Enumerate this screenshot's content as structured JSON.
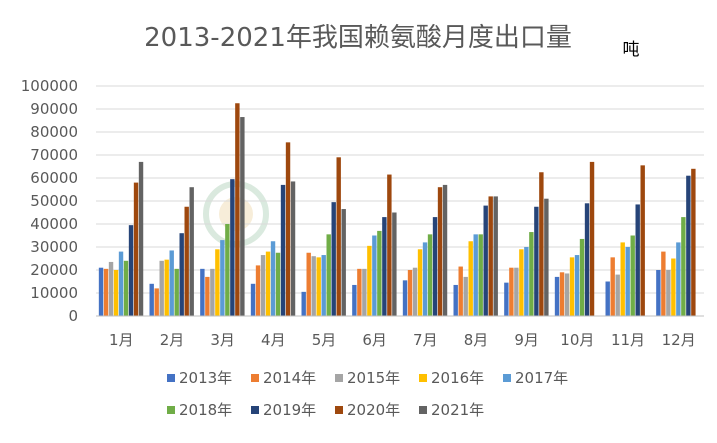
{
  "chart_data": {
    "type": "bar",
    "title": "2013-2021年我国赖氨酸月度出口量",
    "unit": "吨",
    "xlabel": "",
    "ylabel": "",
    "ylim": [
      0,
      100000
    ],
    "yticks": [
      0,
      10000,
      20000,
      30000,
      40000,
      50000,
      60000,
      70000,
      80000,
      90000,
      100000
    ],
    "grid": true,
    "legend_position": "bottom",
    "categories": [
      "1月",
      "2月",
      "3月",
      "4月",
      "5月",
      "6月",
      "7月",
      "8月",
      "9月",
      "10月",
      "11月",
      "12月"
    ],
    "series": [
      {
        "name": "2013年",
        "color": "#4472C4",
        "values": [
          21000,
          14000,
          20500,
          14000,
          10500,
          13500,
          15500,
          13500,
          14500,
          17000,
          15000,
          20000
        ]
      },
      {
        "name": "2014年",
        "color": "#ED7D31",
        "values": [
          20500,
          12000,
          17000,
          22000,
          27500,
          20500,
          20000,
          21500,
          21000,
          19000,
          25500,
          28000
        ]
      },
      {
        "name": "2015年",
        "color": "#A5A5A5",
        "values": [
          23500,
          24000,
          20500,
          26500,
          26000,
          20500,
          21000,
          17000,
          21000,
          18500,
          18000,
          20000
        ]
      },
      {
        "name": "2016年",
        "color": "#FFC000",
        "values": [
          20000,
          24500,
          29000,
          28000,
          25500,
          30500,
          29000,
          32500,
          29000,
          25500,
          32000,
          25000
        ]
      },
      {
        "name": "2017年",
        "color": "#5B9BD5",
        "values": [
          28000,
          28500,
          33000,
          32500,
          26500,
          35000,
          32000,
          35500,
          30000,
          26500,
          30000,
          32000
        ]
      },
      {
        "name": "2018年",
        "color": "#70AD47",
        "values": [
          24000,
          20500,
          40000,
          27500,
          35500,
          37000,
          35500,
          35500,
          36500,
          33500,
          35000,
          43000
        ]
      },
      {
        "name": "2019年",
        "color": "#264478",
        "values": [
          39500,
          36000,
          59500,
          57000,
          49500,
          43000,
          43000,
          48000,
          47500,
          49000,
          48500,
          61000
        ]
      },
      {
        "name": "2020年",
        "color": "#9E480E",
        "values": [
          58000,
          47500,
          92500,
          75500,
          69000,
          61500,
          56000,
          52000,
          62500,
          67000,
          65500,
          64000
        ]
      },
      {
        "name": "2021年",
        "color": "#636363",
        "values": [
          67000,
          56000,
          86500,
          58500,
          46500,
          45000,
          57000,
          52000,
          51000,
          null,
          null,
          null
        ]
      }
    ]
  }
}
